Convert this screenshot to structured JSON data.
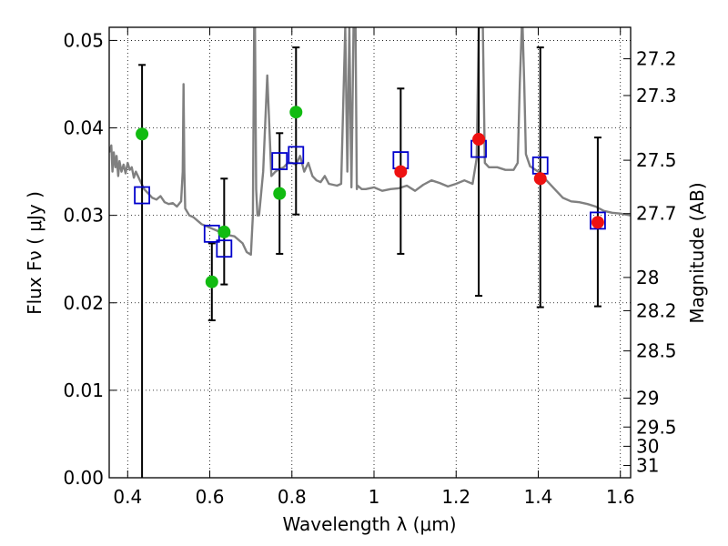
{
  "chart_data": {
    "type": "scatter",
    "xlabel": "Wavelength  λ (μm)",
    "ylabel": "Flux  Fν  ( μJy )",
    "y2label": "Magnitude (AB)",
    "xlim": [
      0.355,
      1.625
    ],
    "ylim": [
      0.0,
      0.0515
    ],
    "x_ticks": [
      0.4,
      0.6,
      0.8,
      1.0,
      1.2,
      1.4,
      1.6
    ],
    "x_tick_labels": [
      "0.4",
      "0.6",
      "0.8",
      "1",
      "1.2",
      "1.4",
      "1.6"
    ],
    "y_ticks": [
      0.0,
      0.01,
      0.02,
      0.03,
      0.04,
      0.05
    ],
    "y_tick_labels": [
      "0.00",
      "0.01",
      "0.02",
      "0.03",
      "0.04",
      "0.05"
    ],
    "right_axis_magnitudes": [
      "27.2",
      "27.3",
      "27.5",
      "27.7",
      "28",
      "28.2",
      "28.5",
      "29",
      "29.5",
      "30",
      "31"
    ],
    "right_axis_flux_positions": [
      0.0479,
      0.0437,
      0.0363,
      0.0302,
      0.0229,
      0.0191,
      0.0145,
      0.0091,
      0.0058,
      0.0036,
      0.0014
    ],
    "grid": true,
    "colors": {
      "model": "#808080",
      "model_points": "#0000cc",
      "observed_green": "#11bb11",
      "observed_red": "#ee1111",
      "errorbar": "#000000"
    },
    "model_spectrum": {
      "x": [
        0.355,
        0.36,
        0.363,
        0.366,
        0.37,
        0.373,
        0.377,
        0.38,
        0.385,
        0.39,
        0.395,
        0.4,
        0.405,
        0.41,
        0.415,
        0.42,
        0.43,
        0.44,
        0.45,
        0.46,
        0.47,
        0.48,
        0.49,
        0.5,
        0.51,
        0.52,
        0.53,
        0.534,
        0.536,
        0.538,
        0.54,
        0.55,
        0.56,
        0.58,
        0.6,
        0.62,
        0.64,
        0.66,
        0.68,
        0.69,
        0.7,
        0.705,
        0.708,
        0.71,
        0.713,
        0.716,
        0.72,
        0.73,
        0.74,
        0.75,
        0.76,
        0.77,
        0.78,
        0.79,
        0.8,
        0.81,
        0.82,
        0.83,
        0.84,
        0.85,
        0.86,
        0.87,
        0.88,
        0.89,
        0.9,
        0.91,
        0.92,
        0.93,
        0.935,
        0.94,
        0.945,
        0.95,
        0.955,
        0.958,
        0.96,
        0.965,
        0.97,
        0.98,
        1.0,
        1.02,
        1.04,
        1.06,
        1.08,
        1.1,
        1.12,
        1.14,
        1.16,
        1.18,
        1.2,
        1.22,
        1.24,
        1.25,
        1.255,
        1.26,
        1.265,
        1.27,
        1.28,
        1.3,
        1.32,
        1.34,
        1.35,
        1.355,
        1.36,
        1.362,
        1.366,
        1.37,
        1.38,
        1.4,
        1.42,
        1.44,
        1.46,
        1.48,
        1.5,
        1.52,
        1.54,
        1.56,
        1.58,
        1.6,
        1.625
      ],
      "y": [
        0.0372,
        0.038,
        0.035,
        0.0372,
        0.0355,
        0.0368,
        0.0345,
        0.0362,
        0.035,
        0.0358,
        0.0348,
        0.036,
        0.0352,
        0.0355,
        0.0343,
        0.035,
        0.034,
        0.033,
        0.0325,
        0.032,
        0.0318,
        0.0322,
        0.0315,
        0.0313,
        0.0314,
        0.031,
        0.0316,
        0.035,
        0.045,
        0.035,
        0.0308,
        0.03,
        0.0298,
        0.029,
        0.0286,
        0.0282,
        0.0278,
        0.0276,
        0.0268,
        0.0258,
        0.0255,
        0.03,
        0.0515,
        0.0515,
        0.033,
        0.03,
        0.03,
        0.035,
        0.046,
        0.0345,
        0.035,
        0.0353,
        0.0355,
        0.036,
        0.036,
        0.0358,
        0.0368,
        0.035,
        0.036,
        0.0345,
        0.034,
        0.0338,
        0.0345,
        0.0336,
        0.0335,
        0.0334,
        0.0336,
        0.0515,
        0.035,
        0.0515,
        0.0332,
        0.0515,
        0.0515,
        0.033,
        0.0334,
        0.0332,
        0.033,
        0.033,
        0.0332,
        0.0328,
        0.033,
        0.0331,
        0.0334,
        0.0328,
        0.0335,
        0.034,
        0.0337,
        0.0333,
        0.0336,
        0.034,
        0.0336,
        0.0365,
        0.0515,
        0.0515,
        0.0515,
        0.036,
        0.0355,
        0.0355,
        0.0352,
        0.0352,
        0.036,
        0.045,
        0.0515,
        0.0515,
        0.045,
        0.037,
        0.0356,
        0.035,
        0.034,
        0.033,
        0.032,
        0.0316,
        0.0315,
        0.0313,
        0.031,
        0.0305,
        0.0303,
        0.0302,
        0.03
      ]
    },
    "model_points": {
      "x": [
        0.435,
        0.605,
        0.635,
        0.77,
        0.81,
        1.065,
        1.255,
        1.405,
        1.545
      ],
      "y": [
        0.0323,
        0.0279,
        0.0262,
        0.0362,
        0.0369,
        0.0363,
        0.0376,
        0.0357,
        0.0294
      ]
    },
    "observed": {
      "x": [
        0.435,
        0.605,
        0.635,
        0.77,
        0.81,
        1.065,
        1.255,
        1.405,
        1.545
      ],
      "y": [
        0.0393,
        0.0224,
        0.0281,
        0.0325,
        0.0418,
        0.035,
        0.0387,
        0.0342,
        0.0292
      ],
      "color_keys": [
        "observed_green",
        "observed_green",
        "observed_green",
        "observed_green",
        "observed_green",
        "observed_red",
        "observed_red",
        "observed_red",
        "observed_red"
      ],
      "err_low": [
        0.0,
        0.018,
        0.0221,
        0.0256,
        0.0301,
        0.0256,
        0.0208,
        0.0195,
        0.0196
      ],
      "err_high": [
        0.0472,
        0.0268,
        0.0342,
        0.0394,
        0.0492,
        0.0445,
        0.0515,
        0.0492,
        0.0389
      ]
    }
  }
}
